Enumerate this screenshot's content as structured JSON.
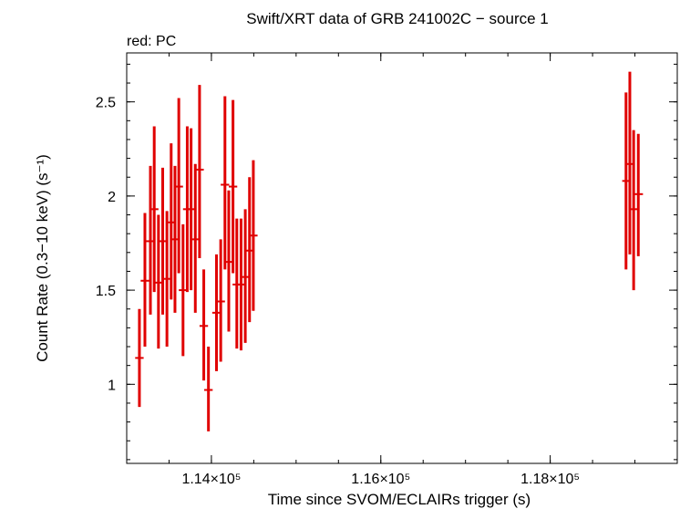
{
  "chart_data": {
    "type": "scatter",
    "title": "Swift/XRT data of GRB 241002C − source 1",
    "subtitle": "red: PC",
    "xlabel": "Time since SVOM/ECLAIRs trigger (s)",
    "ylabel": "Count Rate (0.3−10 keV) (s⁻¹)",
    "xlim": [
      113000,
      119500
    ],
    "ylim": [
      0.58,
      2.76
    ],
    "x_ticks": [
      {
        "value": 114000,
        "label": "1.14×10⁵"
      },
      {
        "value": 116000,
        "label": "1.16×10⁵"
      },
      {
        "value": 118000,
        "label": "1.18×10⁵"
      }
    ],
    "y_ticks": [
      {
        "value": 1,
        "label": "1"
      },
      {
        "value": 1.5,
        "label": "1.5"
      },
      {
        "value": 2,
        "label": "2"
      },
      {
        "value": 2.5,
        "label": "2.5"
      }
    ],
    "grid": false,
    "series": [
      {
        "color": "#e00000",
        "points": [
          {
            "x": 113150,
            "xerr": 50,
            "y": 1.14,
            "ylo": 0.88,
            "yhi": 1.4
          },
          {
            "x": 113215,
            "xerr": 50,
            "y": 1.55,
            "ylo": 1.2,
            "yhi": 1.91
          },
          {
            "x": 113280,
            "xerr": 50,
            "y": 1.76,
            "ylo": 1.37,
            "yhi": 2.16
          },
          {
            "x": 113325,
            "xerr": 50,
            "y": 1.93,
            "ylo": 1.49,
            "yhi": 2.37
          },
          {
            "x": 113375,
            "xerr": 50,
            "y": 1.54,
            "ylo": 1.19,
            "yhi": 1.9
          },
          {
            "x": 113425,
            "xerr": 50,
            "y": 1.76,
            "ylo": 1.37,
            "yhi": 2.15
          },
          {
            "x": 113475,
            "xerr": 50,
            "y": 1.56,
            "ylo": 1.2,
            "yhi": 1.92
          },
          {
            "x": 113525,
            "xerr": 50,
            "y": 1.86,
            "ylo": 1.45,
            "yhi": 2.28
          },
          {
            "x": 113570,
            "xerr": 50,
            "y": 1.77,
            "ylo": 1.38,
            "yhi": 2.16
          },
          {
            "x": 113615,
            "xerr": 50,
            "y": 2.05,
            "ylo": 1.59,
            "yhi": 2.52
          },
          {
            "x": 113665,
            "xerr": 50,
            "y": 1.5,
            "ylo": 1.15,
            "yhi": 1.85
          },
          {
            "x": 113715,
            "xerr": 50,
            "y": 1.93,
            "ylo": 1.49,
            "yhi": 2.37
          },
          {
            "x": 113760,
            "xerr": 50,
            "y": 1.93,
            "ylo": 1.5,
            "yhi": 2.36
          },
          {
            "x": 113810,
            "xerr": 50,
            "y": 1.77,
            "ylo": 1.38,
            "yhi": 2.17
          },
          {
            "x": 113860,
            "xerr": 50,
            "y": 2.14,
            "ylo": 1.67,
            "yhi": 2.59
          },
          {
            "x": 113910,
            "xerr": 50,
            "y": 1.31,
            "ylo": 1.02,
            "yhi": 1.61
          },
          {
            "x": 113965,
            "xerr": 50,
            "y": 0.97,
            "ylo": 0.75,
            "yhi": 1.2
          },
          {
            "x": 114060,
            "xerr": 50,
            "y": 1.38,
            "ylo": 1.07,
            "yhi": 1.69
          },
          {
            "x": 114110,
            "xerr": 50,
            "y": 1.44,
            "ylo": 1.12,
            "yhi": 1.77
          },
          {
            "x": 114160,
            "xerr": 50,
            "y": 2.06,
            "ylo": 1.61,
            "yhi": 2.53
          },
          {
            "x": 114205,
            "xerr": 50,
            "y": 1.65,
            "ylo": 1.28,
            "yhi": 2.03
          },
          {
            "x": 114255,
            "xerr": 50,
            "y": 2.05,
            "ylo": 1.59,
            "yhi": 2.51
          },
          {
            "x": 114300,
            "xerr": 50,
            "y": 1.53,
            "ylo": 1.19,
            "yhi": 1.88
          },
          {
            "x": 114350,
            "xerr": 50,
            "y": 1.53,
            "ylo": 1.18,
            "yhi": 1.88
          },
          {
            "x": 114400,
            "xerr": 50,
            "y": 1.57,
            "ylo": 1.22,
            "yhi": 1.93
          },
          {
            "x": 114450,
            "xerr": 50,
            "y": 1.71,
            "ylo": 1.33,
            "yhi": 2.1
          },
          {
            "x": 114495,
            "xerr": 50,
            "y": 1.79,
            "ylo": 1.39,
            "yhi": 2.19
          },
          {
            "x": 118895,
            "xerr": 45,
            "y": 2.08,
            "ylo": 1.61,
            "yhi": 2.55
          },
          {
            "x": 118940,
            "xerr": 45,
            "y": 2.17,
            "ylo": 1.69,
            "yhi": 2.66
          },
          {
            "x": 118985,
            "xerr": 45,
            "y": 1.93,
            "ylo": 1.5,
            "yhi": 2.35
          },
          {
            "x": 119040,
            "xerr": 55,
            "y": 2.01,
            "ylo": 1.68,
            "yhi": 2.33
          }
        ]
      }
    ]
  }
}
